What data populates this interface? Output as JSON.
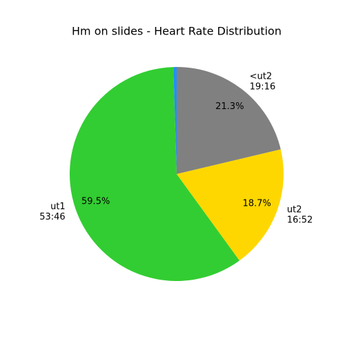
{
  "chart_data": {
    "type": "pie",
    "title": "Hm on slides  - Heart Rate Distribution",
    "categories": [
      null,
      "ut1",
      "ut2",
      "<ut2"
    ],
    "times": [
      null,
      "53:46",
      "16:52",
      "19:16"
    ],
    "values": [
      0.5,
      59.5,
      18.7,
      21.3
    ],
    "value_labels": [
      null,
      "59.5%",
      "18.7%",
      "21.3%"
    ],
    "colors": [
      "#1e90ff",
      "#32cd32",
      "#ffd700",
      "#808080"
    ],
    "start_angle": 90
  }
}
